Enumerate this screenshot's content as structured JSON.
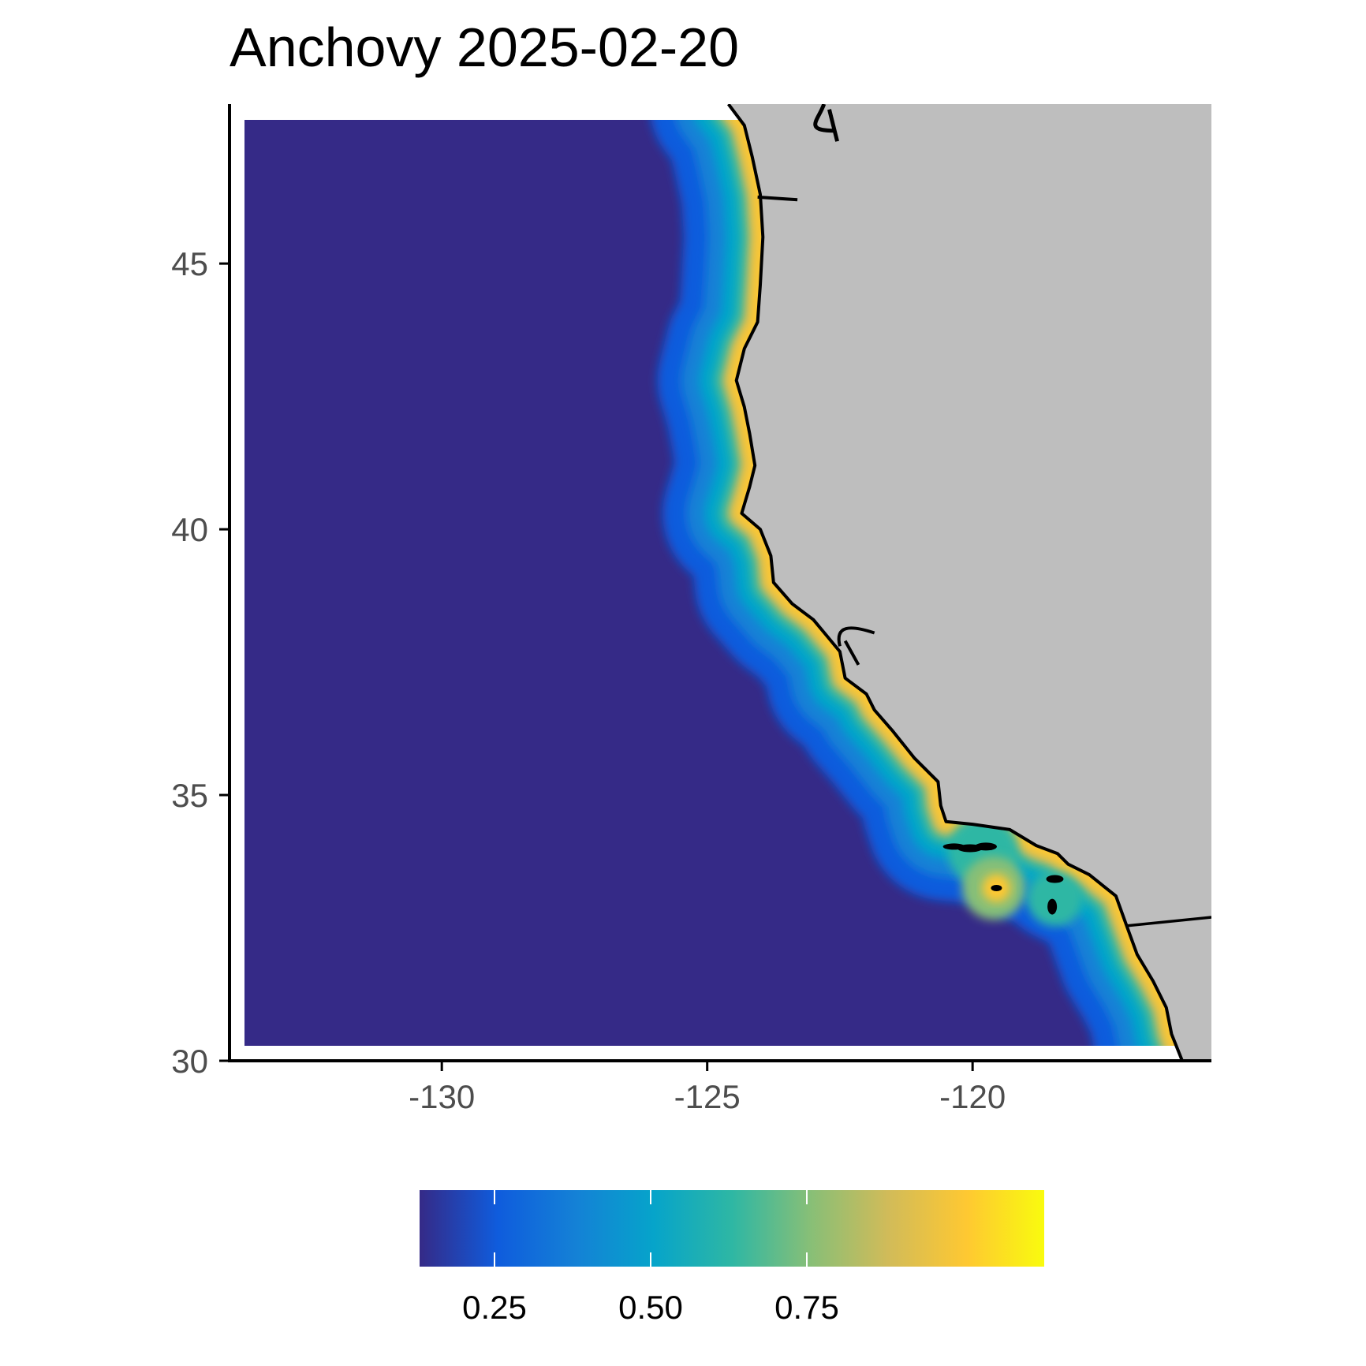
{
  "title": "Anchovy 2025-02-20",
  "axes": {
    "x_ticks": [
      {
        "value": -130,
        "label": "-130"
      },
      {
        "value": -125,
        "label": "-125"
      },
      {
        "value": -120,
        "label": "-120"
      }
    ],
    "y_ticks": [
      {
        "value": 30,
        "label": "30"
      },
      {
        "value": 35,
        "label": "35"
      },
      {
        "value": 40,
        "label": "40"
      },
      {
        "value": 45,
        "label": "45"
      }
    ],
    "x_range": [
      -134,
      -115.5
    ],
    "y_range": [
      30,
      48
    ]
  },
  "legend": {
    "position": "bottom",
    "range": [
      0,
      1
    ],
    "ticks": [
      {
        "value": 0.25,
        "label": "0.25"
      },
      {
        "value": 0.5,
        "label": "0.50"
      },
      {
        "value": 0.75,
        "label": "0.75"
      }
    ],
    "palette": [
      "#352a87",
      "#0f5cdd",
      "#1481d6",
      "#06a4ca",
      "#2eb7a4",
      "#87bf77",
      "#d1bb59",
      "#fec832",
      "#f9fb0e"
    ]
  },
  "colors": {
    "ocean_low": "#352a87",
    "land": "#bebebe",
    "coastline": "#000000"
  },
  "chart_data": {
    "type": "heatmap",
    "title": "Anchovy 2025-02-20",
    "xlabel": "",
    "ylabel": "",
    "xlim": [
      -134,
      -115.5
    ],
    "ylim": [
      30,
      48
    ],
    "value_range": [
      0,
      1
    ],
    "description_values": "Habitat probability near 0 offshore, rising to about 0.8-0.9 in a narrow nearshore band along the coast, highest near 38 N and around the Southern California Bight islands",
    "coastline": [
      [
        -124.6,
        48.0
      ],
      [
        -124.3,
        47.6
      ],
      [
        -124.15,
        47.0
      ],
      [
        -124.0,
        46.3
      ],
      [
        -123.95,
        45.5
      ],
      [
        -124.0,
        44.6
      ],
      [
        -124.05,
        43.9
      ],
      [
        -124.3,
        43.4
      ],
      [
        -124.45,
        42.8
      ],
      [
        -124.3,
        42.3
      ],
      [
        -124.2,
        41.8
      ],
      [
        -124.1,
        41.2
      ],
      [
        -124.2,
        40.8
      ],
      [
        -124.35,
        40.3
      ],
      [
        -124.0,
        40.0
      ],
      [
        -123.8,
        39.5
      ],
      [
        -123.75,
        39.0
      ],
      [
        -123.4,
        38.6
      ],
      [
        -123.0,
        38.3
      ],
      [
        -122.75,
        38.0
      ],
      [
        -122.5,
        37.7
      ],
      [
        -122.4,
        37.2
      ],
      [
        -122.0,
        36.9
      ],
      [
        -121.85,
        36.6
      ],
      [
        -121.5,
        36.2
      ],
      [
        -121.1,
        35.7
      ],
      [
        -120.65,
        35.25
      ],
      [
        -120.6,
        34.8
      ],
      [
        -120.5,
        34.5
      ],
      [
        -120.0,
        34.45
      ],
      [
        -119.3,
        34.35
      ],
      [
        -118.8,
        34.05
      ],
      [
        -118.4,
        33.9
      ],
      [
        -118.2,
        33.7
      ],
      [
        -117.8,
        33.5
      ],
      [
        -117.3,
        33.1
      ],
      [
        -117.1,
        32.55
      ],
      [
        -116.9,
        32.0
      ],
      [
        -116.6,
        31.5
      ],
      [
        -116.35,
        31.0
      ],
      [
        -116.25,
        30.5
      ],
      [
        -116.05,
        30.0
      ]
    ],
    "border_line": [
      [
        -117.1,
        32.54
      ],
      [
        -115.5,
        32.7
      ]
    ]
  }
}
